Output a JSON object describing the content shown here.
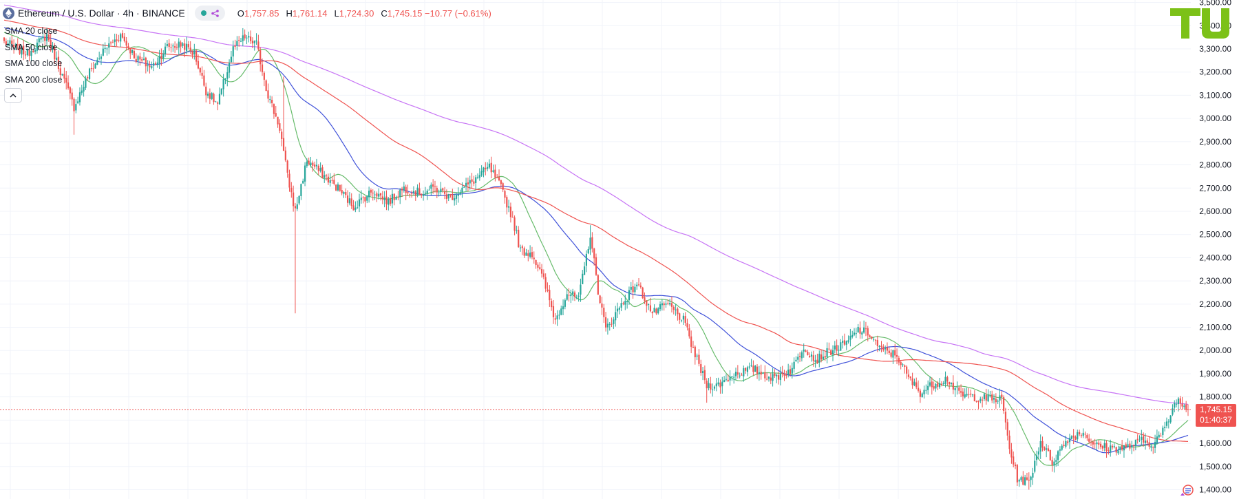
{
  "header": {
    "symbol": "Ethereum / U.S. Dollar · 4h · BINANCE",
    "ohlc": [
      {
        "key": "O",
        "value": "1,757.85"
      },
      {
        "key": "H",
        "value": "1,761.14"
      },
      {
        "key": "L",
        "value": "1,724.30"
      },
      {
        "key": "C",
        "value": "1,745.15 −10.77 (−0.61%)"
      }
    ]
  },
  "legend": {
    "items": [
      {
        "label": "SMA 20 close"
      },
      {
        "label": "SMA 50 close"
      },
      {
        "label": "SMA 100 close"
      },
      {
        "label": "SMA 200 close"
      }
    ]
  },
  "price_tag": {
    "price": "1,745.15",
    "countdown": "01:40:37"
  },
  "colors": {
    "up": "#26a69a",
    "down": "#ef5350",
    "sma20": "#66bb6a",
    "sma50": "#3f51d9",
    "sma100": "#ef5350",
    "sma200": "#c774f5",
    "logo": "#7cc118"
  },
  "chart_data": {
    "type": "candlestick",
    "title": "Ethereum / U.S. Dollar · 4h · BINANCE",
    "ylim": [
      1380,
      3540
    ],
    "y_ticks": [
      1400,
      1500,
      1600,
      1700,
      1800,
      1900,
      2000,
      2100,
      2200,
      2300,
      2400,
      2500,
      2600,
      2700,
      2800,
      2900,
      3000,
      3100,
      3200,
      3300,
      3400,
      3500
    ],
    "y_tick_labels": [
      "1,400.00",
      "1,500.00",
      "1,600.00",
      "1,700.00",
      "1,800.00",
      "1,900.00",
      "2,000.00",
      "2,100.00",
      "2,200.00",
      "2,300.00",
      "2,400.00",
      "2,500.00",
      "2,600.00",
      "2,700.00",
      "2,800.00",
      "2,900.00",
      "3,000.00",
      "3,100.00",
      "3,200.00",
      "3,300.00",
      "3,400.00",
      "3,500.00"
    ],
    "last_price": 1745.15,
    "price_anchors": [
      [
        0,
        3330
      ],
      [
        12,
        3280
      ],
      [
        22,
        3360
      ],
      [
        32,
        3140
      ],
      [
        36,
        3050
      ],
      [
        44,
        3200
      ],
      [
        52,
        3300
      ],
      [
        60,
        3360
      ],
      [
        68,
        3260
      ],
      [
        76,
        3220
      ],
      [
        84,
        3310
      ],
      [
        92,
        3320
      ],
      [
        98,
        3280
      ],
      [
        104,
        3120
      ],
      [
        110,
        3060
      ],
      [
        118,
        3300
      ],
      [
        124,
        3350
      ],
      [
        130,
        3320
      ],
      [
        136,
        3100
      ],
      [
        142,
        2960
      ],
      [
        146,
        2750
      ],
      [
        150,
        2600
      ],
      [
        156,
        2820
      ],
      [
        164,
        2760
      ],
      [
        172,
        2700
      ],
      [
        180,
        2620
      ],
      [
        190,
        2690
      ],
      [
        198,
        2640
      ],
      [
        206,
        2700
      ],
      [
        214,
        2680
      ],
      [
        222,
        2700
      ],
      [
        230,
        2660
      ],
      [
        240,
        2720
      ],
      [
        250,
        2790
      ],
      [
        256,
        2700
      ],
      [
        262,
        2570
      ],
      [
        266,
        2430
      ],
      [
        272,
        2420
      ],
      [
        278,
        2300
      ],
      [
        284,
        2130
      ],
      [
        290,
        2250
      ],
      [
        296,
        2220
      ],
      [
        302,
        2500
      ],
      [
        306,
        2260
      ],
      [
        310,
        2090
      ],
      [
        318,
        2200
      ],
      [
        326,
        2290
      ],
      [
        334,
        2160
      ],
      [
        342,
        2200
      ],
      [
        350,
        2130
      ],
      [
        356,
        1980
      ],
      [
        362,
        1850
      ],
      [
        368,
        1850
      ],
      [
        376,
        1900
      ],
      [
        386,
        1920
      ],
      [
        396,
        1880
      ],
      [
        406,
        1920
      ],
      [
        412,
        2020
      ],
      [
        418,
        1960
      ],
      [
        426,
        2000
      ],
      [
        434,
        2030
      ],
      [
        440,
        2090
      ],
      [
        446,
        2070
      ],
      [
        452,
        2000
      ],
      [
        460,
        1980
      ],
      [
        466,
        1880
      ],
      [
        472,
        1820
      ],
      [
        480,
        1860
      ],
      [
        486,
        1880
      ],
      [
        492,
        1810
      ],
      [
        500,
        1800
      ],
      [
        508,
        1790
      ],
      [
        514,
        1790
      ],
      [
        518,
        1580
      ],
      [
        522,
        1450
      ],
      [
        528,
        1430
      ],
      [
        534,
        1610
      ],
      [
        540,
        1520
      ],
      [
        548,
        1620
      ],
      [
        556,
        1650
      ],
      [
        562,
        1590
      ],
      [
        570,
        1580
      ],
      [
        578,
        1580
      ],
      [
        586,
        1610
      ],
      [
        592,
        1600
      ],
      [
        598,
        1660
      ],
      [
        604,
        1790
      ],
      [
        610,
        1745
      ]
    ],
    "series": [
      {
        "name": "SMA 20 close",
        "period": 20
      },
      {
        "name": "SMA 50 close",
        "period": 50
      },
      {
        "name": "SMA 100 close",
        "period": 100
      },
      {
        "name": "SMA 200 close",
        "period": 200
      }
    ],
    "grid": true,
    "legend_position": "top-left"
  }
}
